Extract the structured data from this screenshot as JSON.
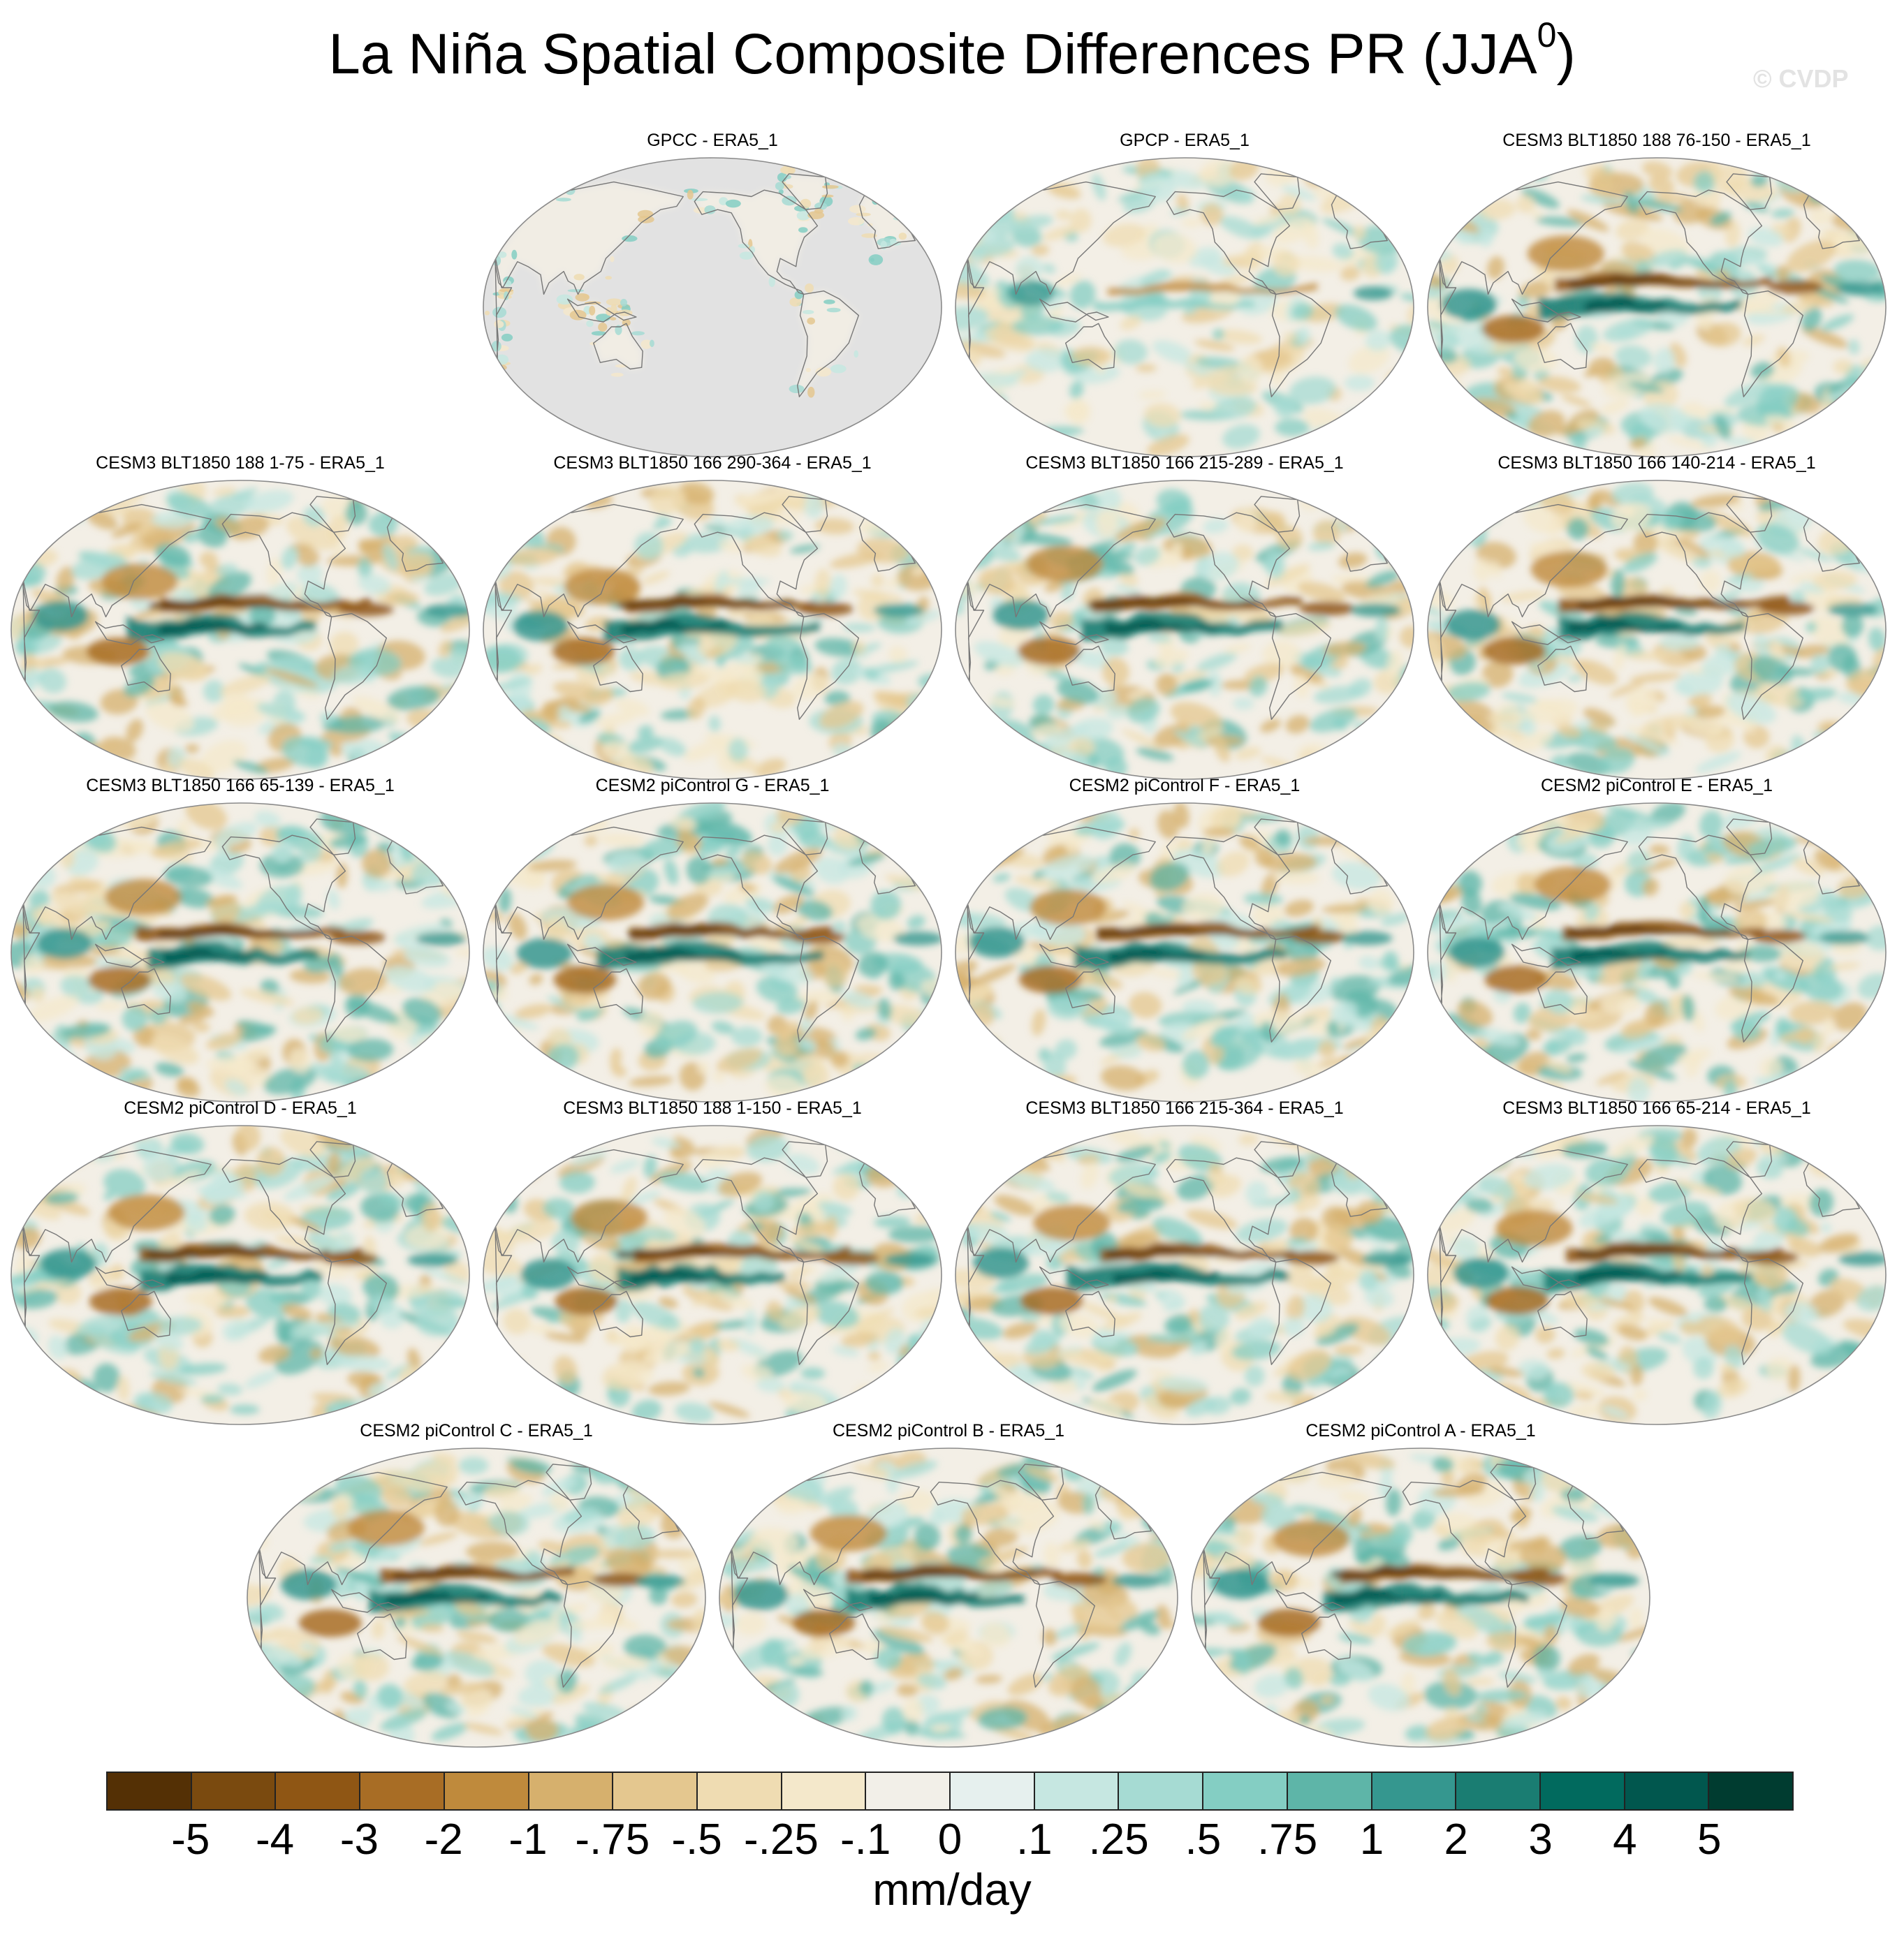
{
  "figure": {
    "title": "La Niña Spatial Composite Differences PR (JJA",
    "title_superscript": "0",
    "title_suffix": ")",
    "watermark": "© CVDP"
  },
  "panels": [
    {
      "label": "GPCC - ERA5_1",
      "type": "land-only"
    },
    {
      "label": "GPCP - ERA5_1",
      "type": "weak"
    },
    {
      "label": "CESM3 BLT1850 188 76-150 - ERA5_1",
      "type": "strong"
    },
    {
      "label": "CESM3 BLT1850 188 1-75 - ERA5_1",
      "type": "strong"
    },
    {
      "label": "CESM3 BLT1850 166 290-364 - ERA5_1",
      "type": "strong"
    },
    {
      "label": "CESM3 BLT1850 166 215-289 - ERA5_1",
      "type": "strong"
    },
    {
      "label": "CESM3 BLT1850 166 140-214 - ERA5_1",
      "type": "strong"
    },
    {
      "label": "CESM3 BLT1850 166 65-139 - ERA5_1",
      "type": "strong"
    },
    {
      "label": "CESM2 piControl G - ERA5_1",
      "type": "strong"
    },
    {
      "label": "CESM2 piControl F - ERA5_1",
      "type": "strong"
    },
    {
      "label": "CESM2 piControl E - ERA5_1",
      "type": "strong"
    },
    {
      "label": "CESM2 piControl D - ERA5_1",
      "type": "strong"
    },
    {
      "label": "CESM3 BLT1850 188 1-150 - ERA5_1",
      "type": "strong"
    },
    {
      "label": "CESM3 BLT1850 166 215-364 - ERA5_1",
      "type": "strong"
    },
    {
      "label": "CESM3 BLT1850 166 65-214 - ERA5_1",
      "type": "strong"
    },
    {
      "label": "CESM2 piControl C - ERA5_1",
      "type": "strong"
    },
    {
      "label": "CESM2 piControl B - ERA5_1",
      "type": "strong"
    },
    {
      "label": "CESM2 piControl A - ERA5_1",
      "type": "strong"
    }
  ],
  "colorbar": {
    "units": "mm/day",
    "labels": [
      "-5",
      "-4",
      "-3",
      "-2",
      "-1",
      "-.75",
      "-.5",
      "-.25",
      "-.1",
      "0",
      ".1",
      ".25",
      ".5",
      ".75",
      "1",
      "2",
      "3",
      "4",
      "5"
    ],
    "colors": [
      "#543005",
      "#7a4a0f",
      "#8f5614",
      "#a86d25",
      "#bf8a3c",
      "#d6b06d",
      "#e4c78f",
      "#efdcb2",
      "#f4e8cb",
      "#f2efe8",
      "#e6f0ee",
      "#c6e7e1",
      "#a6dbd3",
      "#84cec3",
      "#5eb5a8",
      "#35978f",
      "#1a7d72",
      "#016a5e",
      "#01574e",
      "#003c30"
    ]
  }
}
